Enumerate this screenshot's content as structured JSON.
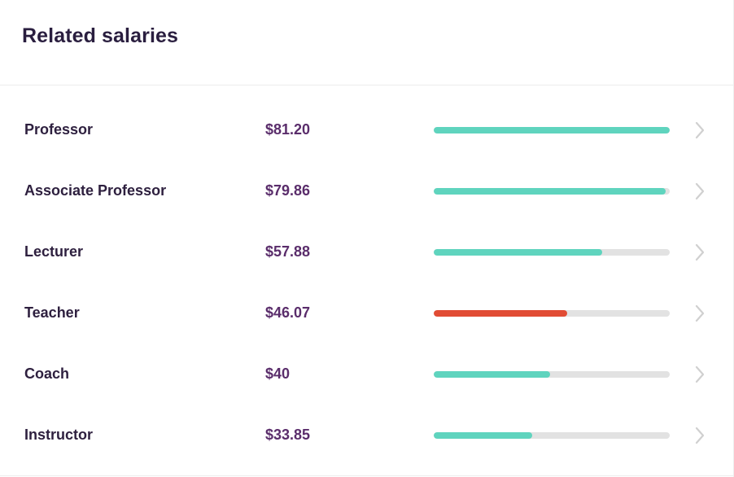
{
  "header": {
    "title": "Related salaries"
  },
  "colors": {
    "bar_default": "#5fd4be",
    "bar_highlight": "#e14c34",
    "bar_track": "#e2e2e2",
    "role_text": "#2e203f",
    "amount_text": "#5a2d6b",
    "chevron": "#cfcfcf"
  },
  "salaries": [
    {
      "role": "Professor",
      "amount": "$81.20",
      "level": 1.0,
      "highlight": false
    },
    {
      "role": "Associate Professor",
      "amount": "$79.86",
      "level": 0.983,
      "highlight": false
    },
    {
      "role": "Lecturer",
      "amount": "$57.88",
      "level": 0.713,
      "highlight": false
    },
    {
      "role": "Teacher",
      "amount": "$46.07",
      "level": 0.567,
      "highlight": true
    },
    {
      "role": "Coach",
      "amount": "$40",
      "level": 0.493,
      "highlight": false
    },
    {
      "role": "Instructor",
      "amount": "$33.85",
      "level": 0.417,
      "highlight": false
    }
  ],
  "icons": {
    "row_chevron": "chevron-right-icon"
  }
}
